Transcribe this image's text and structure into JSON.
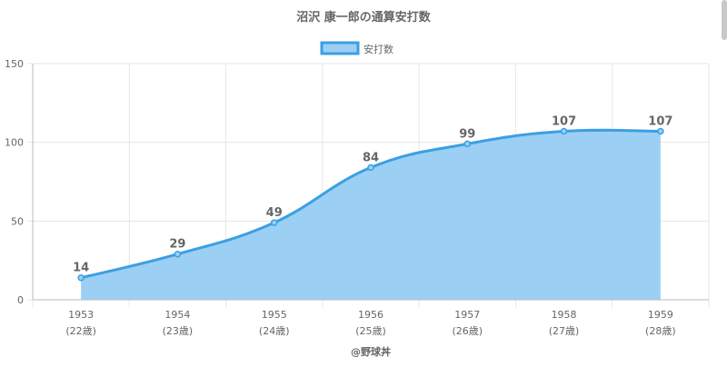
{
  "chart_data": {
    "type": "area",
    "title": "沼沢 康一郎の通算安打数",
    "legend": {
      "label": "安打数",
      "position": "top"
    },
    "x": [
      "1953",
      "1954",
      "1955",
      "1956",
      "1957",
      "1958",
      "1959"
    ],
    "x_sublabels": [
      "(22歳)",
      "(23歳)",
      "(24歳)",
      "(25歳)",
      "(26歳)",
      "(27歳)",
      "(28歳)"
    ],
    "series": [
      {
        "name": "安打数",
        "values": [
          14,
          29,
          49,
          84,
          99,
          107,
          107
        ]
      }
    ],
    "ylim": [
      0,
      150
    ],
    "yticks": [
      0,
      50,
      100,
      150
    ],
    "grid": true,
    "data_labels": true,
    "colors": {
      "fill": "#9ccff4",
      "line": "#3b9fe3",
      "grid": "#e6e6e6",
      "axis": "#bbbbbb",
      "tick_text": "#666666",
      "title_text": "#666666",
      "label_text": "#666666"
    }
  },
  "credit": "@野球丼"
}
